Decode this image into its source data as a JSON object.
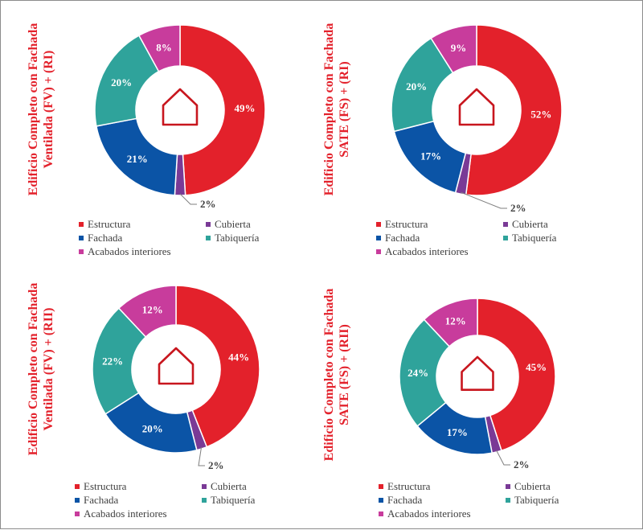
{
  "chart_data": [
    {
      "type": "pie",
      "title_lines": [
        "Edificio Completo con Fachada",
        "Ventilada (FV) + (RI)"
      ],
      "categories": [
        "Estructura",
        "Cubierta",
        "Fachada",
        "Tabiquería",
        "Acabados interiores"
      ],
      "values": [
        49,
        2,
        21,
        20,
        8
      ],
      "labels": [
        "49%",
        "2%",
        "21%",
        "20%",
        "8%"
      ]
    },
    {
      "type": "pie",
      "title_lines": [
        "Edificio Completo con Fachada",
        "SATE (FS) + (RI)"
      ],
      "categories": [
        "Estructura",
        "Cubierta",
        "Fachada",
        "Tabiquería",
        "Acabados interiores"
      ],
      "values": [
        52,
        2,
        17,
        20,
        9
      ],
      "labels": [
        "52%",
        "2%",
        "17%",
        "20%",
        "9%"
      ]
    },
    {
      "type": "pie",
      "title_lines": [
        "Edificio Completo con Fachada",
        "Ventilada (FV) + (RII)"
      ],
      "categories": [
        "Estructura",
        "Cubierta",
        "Fachada",
        "Tabiquería",
        "Acabados interiores"
      ],
      "values": [
        44,
        2,
        20,
        22,
        12
      ],
      "labels": [
        "44%",
        "2%",
        "20%",
        "22%",
        "12%"
      ]
    },
    {
      "type": "pie",
      "title_lines": [
        "Edificio Completo con Fachada",
        "SATE (FS) + (RII)"
      ],
      "categories": [
        "Estructura",
        "Cubierta",
        "Fachada",
        "Tabiquería",
        "Acabados interiores"
      ],
      "values": [
        45,
        2,
        17,
        24,
        12
      ],
      "labels": [
        "45%",
        "2%",
        "17%",
        "24%",
        "12%"
      ]
    }
  ],
  "colors": {
    "Estructura": "#e3212b",
    "Cubierta": "#7a3a96",
    "Fachada": "#0b54a6",
    "Tabiquería": "#2fa39b",
    "Acabados interiores": "#c83c9c",
    "title": "#e3212b",
    "house_icon": "#c8161e"
  },
  "center_icon": "house-outline-icon"
}
